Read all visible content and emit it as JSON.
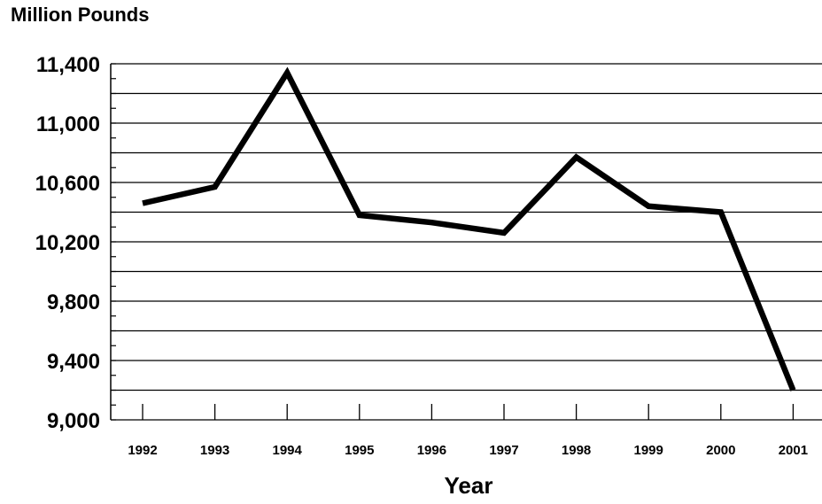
{
  "chart_data": {
    "type": "line",
    "title": "",
    "ylabel": "Million Pounds",
    "xlabel": "Year",
    "x": [
      "1992",
      "1993",
      "1994",
      "1995",
      "1996",
      "1997",
      "1998",
      "1999",
      "2000",
      "2001"
    ],
    "series": [
      {
        "values": [
          10460,
          10570,
          11340,
          10380,
          10330,
          10260,
          10770,
          10440,
          10400,
          9200
        ]
      }
    ],
    "ylim": [
      9000,
      11400
    ],
    "yticks": [
      9000,
      9400,
      9800,
      10200,
      10600,
      11000,
      11400
    ],
    "ytick_labels": [
      "9,000",
      "9,400",
      "9,800",
      "10,200",
      "10,600",
      "11,000",
      "11,400"
    ],
    "grid_step": 200,
    "grid": true,
    "line_color": "#000000"
  }
}
